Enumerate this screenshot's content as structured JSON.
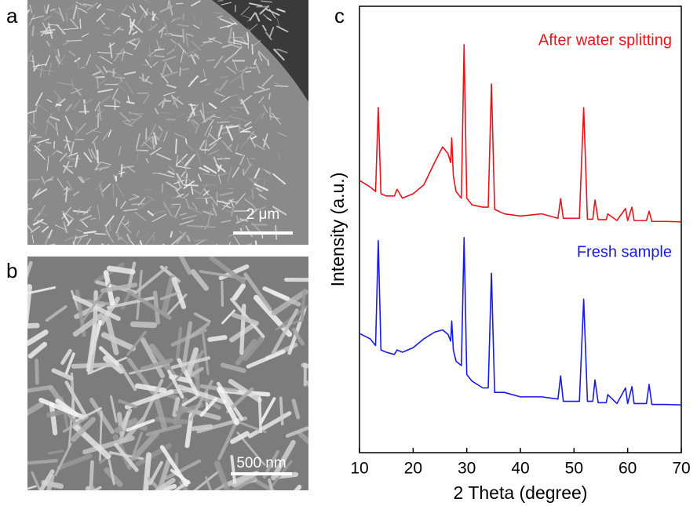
{
  "panels": {
    "a": {
      "label": "a",
      "scale_bar": "2 μm"
    },
    "b": {
      "label": "b",
      "scale_bar": "500 nm"
    },
    "c": {
      "label": "c"
    }
  },
  "chart_data": {
    "type": "line",
    "x_label": "2 Theta (degree)",
    "y_label": "Intensity (a.u.)",
    "x": [
      10,
      12,
      13,
      13.5,
      14,
      15,
      16.5,
      17,
      18,
      20,
      22,
      24,
      25.5,
      26.5,
      27,
      27.2,
      27.5,
      28,
      29,
      29.5,
      30,
      31,
      33,
      34,
      34.6,
      35.2,
      37,
      40,
      44,
      47,
      47.5,
      48,
      51,
      51.8,
      52.5,
      53.5,
      53.9,
      54.5,
      56,
      56.3,
      58,
      59.6,
      60,
      60.8,
      61.2,
      63.5,
      64,
      64.5,
      67,
      70
    ],
    "series": [
      {
        "name": "After water splitting",
        "color": "#e8141c",
        "values": [
          61,
          59.5,
          58.5,
          77.3,
          58,
          57.5,
          57.5,
          59,
          57,
          58,
          60,
          65,
          68.5,
          67,
          65,
          70.5,
          62,
          58.5,
          57,
          91.4,
          57,
          55.5,
          55,
          55,
          82.6,
          54.5,
          53.5,
          53,
          53.5,
          52.5,
          56.9,
          52.5,
          52.5,
          77.3,
          52.3,
          52.3,
          56.6,
          52.2,
          52.2,
          53.5,
          52,
          54.7,
          52,
          55,
          52,
          52,
          54.1,
          51.8,
          51.8,
          51.7
        ]
      },
      {
        "name": "Fresh sample",
        "color": "#1a1ae6",
        "values": [
          26.7,
          25.5,
          24,
          47.5,
          23,
          22.5,
          22,
          23,
          22.5,
          23.5,
          25.5,
          27,
          27.5,
          26.5,
          25,
          29.5,
          23,
          20.5,
          19.5,
          48.2,
          17.5,
          16,
          14.5,
          14.5,
          40.2,
          13.5,
          13.5,
          12.5,
          12.5,
          12,
          17.2,
          11.5,
          11.5,
          34.4,
          11.5,
          11.5,
          16.3,
          11.2,
          11.2,
          13,
          11,
          14.5,
          11,
          14.8,
          11,
          11,
          15.3,
          10.8,
          10.8,
          10.7
        ]
      }
    ],
    "xlim": [
      10,
      70
    ],
    "xticks": [
      10,
      20,
      30,
      40,
      50,
      60,
      70
    ],
    "ylim": [
      0,
      100
    ]
  }
}
